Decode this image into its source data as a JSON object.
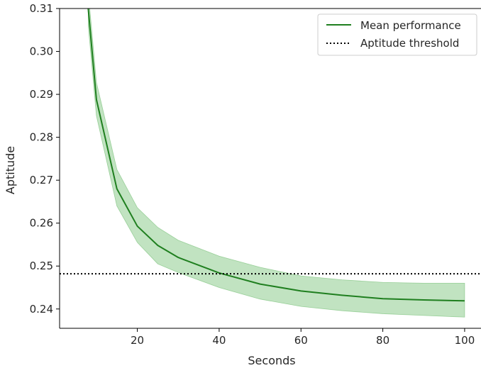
{
  "chart_data": {
    "type": "line",
    "xlabel": "Seconds",
    "ylabel": "Aptitude",
    "xlim": [
      1,
      104
    ],
    "ylim": [
      0.2355,
      0.31
    ],
    "x_ticks": [
      20,
      40,
      60,
      80,
      100
    ],
    "y_ticks": [
      0.24,
      0.25,
      0.26,
      0.27,
      0.28,
      0.29,
      0.3,
      0.31
    ],
    "x_tick_labels": [
      "20",
      "40",
      "60",
      "80",
      "100"
    ],
    "y_tick_labels": [
      "0.24",
      "0.25",
      "0.26",
      "0.27",
      "0.28",
      "0.29",
      "0.30",
      "0.31"
    ],
    "grid": false,
    "legend_position": "top-right",
    "series": [
      {
        "name": "Mean performance",
        "color": "#1f7f1f",
        "band_color": "#9fd49f",
        "x": [
          8,
          10,
          15,
          20,
          25,
          30,
          40,
          50,
          60,
          70,
          80,
          90,
          100
        ],
        "y": [
          0.31,
          0.2888,
          0.268,
          0.2593,
          0.2548,
          0.252,
          0.2484,
          0.2458,
          0.2442,
          0.2432,
          0.2424,
          0.2421,
          0.2419
        ],
        "lower": [
          0.306,
          0.285,
          0.264,
          0.2555,
          0.2505,
          0.2485,
          0.245,
          0.2423,
          0.2406,
          0.2396,
          0.2389,
          0.2385,
          0.2381
        ],
        "upper": [
          0.314,
          0.2928,
          0.2725,
          0.2636,
          0.259,
          0.256,
          0.2523,
          0.2497,
          0.2477,
          0.2468,
          0.2462,
          0.246,
          0.246
        ]
      },
      {
        "name": "Aptitude threshold",
        "color": "#000000",
        "style": "dotted",
        "y_constant": 0.2482
      }
    ]
  }
}
